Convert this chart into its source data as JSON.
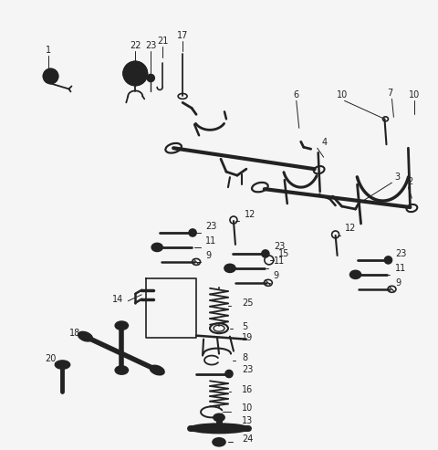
{
  "background_color": "#f5f5f5",
  "line_color": "#222222",
  "label_color": "#222222",
  "figsize": [
    4.8,
    4.93
  ],
  "dpi": 100
}
